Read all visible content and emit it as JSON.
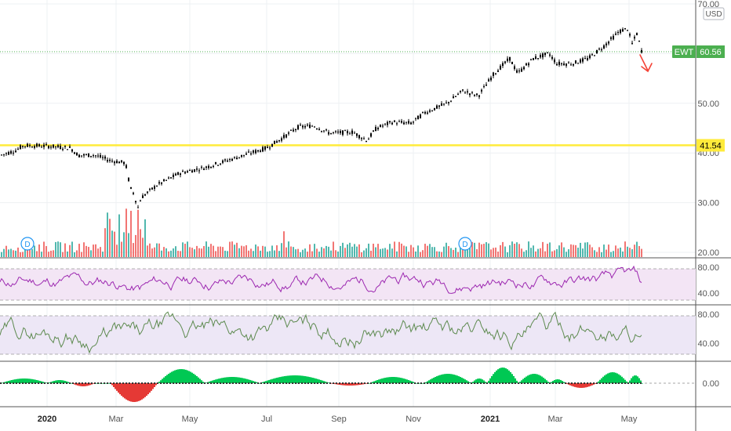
{
  "chart_data": {
    "type": "candlestick",
    "symbol": "EWT",
    "currency": "USD",
    "last_price_label": "60.56",
    "support_line": {
      "value": 41.54,
      "label": "41.54",
      "color": "#ffeb3b"
    },
    "main_axis": {
      "ticks": [
        "70.00",
        "60.00",
        "50.00",
        "40.00",
        "30.00",
        "20.00"
      ],
      "ylim": [
        20,
        70
      ]
    },
    "x_labels": [
      "2020",
      "Mar",
      "May",
      "Jul",
      "Sep",
      "Nov",
      "2021",
      "Mar",
      "May"
    ],
    "dividend_markers": [
      "D",
      "D"
    ],
    "price_anchors": [
      [
        0,
        39.5
      ],
      [
        20,
        40.5
      ],
      [
        30,
        41.5
      ],
      [
        60,
        41.4
      ],
      [
        90,
        41
      ],
      [
        100,
        39.5
      ],
      [
        120,
        39.6
      ],
      [
        140,
        38.5
      ],
      [
        160,
        38
      ],
      [
        166,
        33
      ],
      [
        170,
        32
      ],
      [
        176,
        29
      ],
      [
        180,
        31
      ],
      [
        200,
        33.5
      ],
      [
        230,
        36
      ],
      [
        260,
        37
      ],
      [
        290,
        38.5
      ],
      [
        320,
        40
      ],
      [
        340,
        41
      ],
      [
        360,
        43
      ],
      [
        380,
        45.2
      ],
      [
        400,
        45.5
      ],
      [
        420,
        44
      ],
      [
        450,
        44.2
      ],
      [
        468,
        42.5
      ],
      [
        480,
        45
      ],
      [
        500,
        46.2
      ],
      [
        525,
        46
      ],
      [
        540,
        48
      ],
      [
        570,
        50
      ],
      [
        590,
        52.5
      ],
      [
        610,
        51.5
      ],
      [
        630,
        56
      ],
      [
        650,
        59
      ],
      [
        660,
        56
      ],
      [
        680,
        59
      ],
      [
        700,
        60
      ],
      [
        710,
        58
      ],
      [
        730,
        58
      ],
      [
        750,
        59
      ],
      [
        770,
        61.5
      ],
      [
        790,
        64.5
      ],
      [
        800,
        65
      ],
      [
        806,
        62
      ],
      [
        812,
        64
      ],
      [
        818,
        60.6
      ]
    ],
    "indicator_1": {
      "type": "rsi",
      "ticks": [
        "80.00",
        "40.00"
      ],
      "band": [
        30,
        70
      ],
      "color": "#9c27b0",
      "band_color": "#f3e5f5"
    },
    "indicator_2": {
      "type": "oscillator",
      "ticks": [
        "80.00",
        "40.00"
      ],
      "band": [
        20,
        80
      ],
      "color": "#5d8a4f",
      "band_color": "#ede7f6"
    },
    "indicator_3": {
      "type": "histogram",
      "ticks": [
        "0.00"
      ],
      "up_color": "#00c853",
      "down_color": "#e53935"
    },
    "colors": {
      "candle": "#000000",
      "vol_up": "#26a69a",
      "vol_down": "#ef5350",
      "price_badge": "#4caf50",
      "arrow": "#f44336",
      "grid": "#eef0f3",
      "border": "#555555"
    }
  }
}
